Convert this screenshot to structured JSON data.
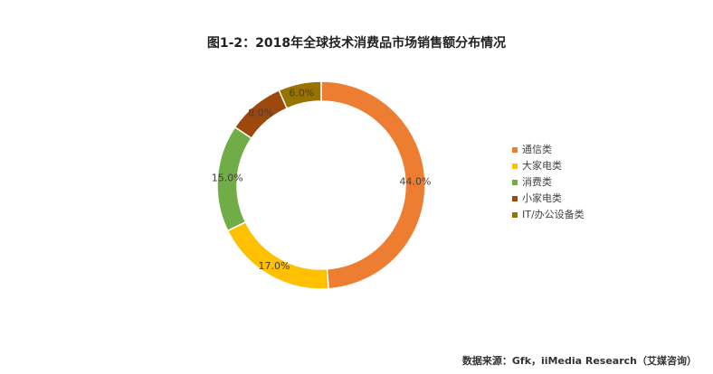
{
  "chart_data": {
    "type": "pie",
    "donut": true,
    "title": "图1-2：2018年全球技术消费品市场销售额分布情况",
    "categories": [
      "通信类",
      "大家电类",
      "消费类",
      "小家电类",
      "IT/办公设备类"
    ],
    "values": [
      44,
      17,
      15,
      8,
      6
    ],
    "value_labels": [
      "44.0%",
      "17.0%",
      "15.0%",
      "8.0%",
      "6.0%"
    ],
    "colors": [
      "#ED7D31",
      "#FFC000",
      "#70AD47",
      "#9E480E",
      "#997300"
    ],
    "source": "数据来源：Gfk，iiMedia Research（艾媒咨询）"
  }
}
